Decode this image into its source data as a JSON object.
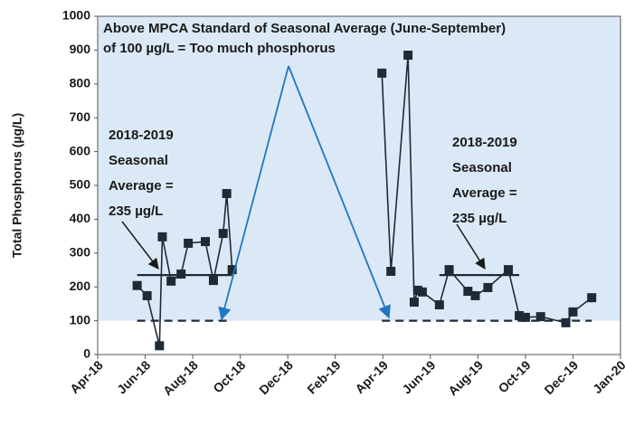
{
  "chart_data": {
    "type": "line",
    "y_label": "Total Phosphorus (µg/L)",
    "xlim": [
      3,
      25
    ],
    "ylim": [
      0,
      1000
    ],
    "xticks": [
      {
        "value": 3,
        "label": "Apr-18"
      },
      {
        "value": 5,
        "label": "Jun-18"
      },
      {
        "value": 7,
        "label": "Aug-18"
      },
      {
        "value": 9,
        "label": "Oct-18"
      },
      {
        "value": 11,
        "label": "Dec-18"
      },
      {
        "value": 13,
        "label": "Feb-19"
      },
      {
        "value": 15,
        "label": "Apr-19"
      },
      {
        "value": 17,
        "label": "Jun-19"
      },
      {
        "value": 19,
        "label": "Aug-19"
      },
      {
        "value": 21,
        "label": "Oct-19"
      },
      {
        "value": 23,
        "label": "Dec-19"
      },
      {
        "value": 25,
        "label": "Jan-20"
      }
    ],
    "yticks": [
      0,
      100,
      200,
      300,
      400,
      500,
      600,
      700,
      800,
      900,
      1000
    ],
    "threshold": 100,
    "shade_color": "#dbe9f6",
    "series": [
      {
        "color": "#1f2a36",
        "markers": true,
        "dashed": false,
        "x": [
          4.66,
          5.08,
          5.6,
          5.72,
          6.09,
          6.51,
          6.81,
          7.53,
          7.87,
          8.28,
          8.43,
          8.66,
          null,
          14.96,
          15.34,
          16.06,
          16.32,
          16.47,
          16.66,
          17.38,
          17.79,
          18.58,
          18.89,
          19.42,
          20.28,
          20.74,
          21.0,
          21.64,
          22.7,
          23.0,
          23.79
        ],
        "values": [
          204,
          174,
          26,
          348,
          217,
          238,
          329,
          334,
          219,
          358,
          476,
          251,
          null,
          832,
          246,
          885,
          155,
          190,
          185,
          147,
          251,
          187,
          174,
          198,
          251,
          115,
          110,
          112,
          94,
          126,
          168
        ]
      },
      {
        "color": "#1f2a36",
        "markers": false,
        "dashed": false,
        "x": [
          4.66,
          8.66,
          null,
          17.38,
          20.74
        ],
        "values": [
          235,
          235,
          null,
          235,
          235
        ]
      },
      {
        "color": "#1f2a36",
        "markers": false,
        "dashed": true,
        "x": [
          4.66,
          8.66,
          null,
          14.96,
          23.79
        ],
        "values": [
          100,
          100,
          null,
          100,
          100
        ]
      }
    ],
    "annotations": [
      {
        "lines": [
          "Above MPCA Standard of Seasonal Average (June-September)",
          "of 100 µg/L =  Too much phosphorus"
        ]
      },
      {
        "lines": [
          "2018-2019",
          "Seasonal",
          "Average =",
          "235 µg/L"
        ]
      },
      {
        "lines": [
          "2018-2019",
          "Seasonal",
          "Average =",
          "235 µg/L"
        ]
      }
    ]
  }
}
